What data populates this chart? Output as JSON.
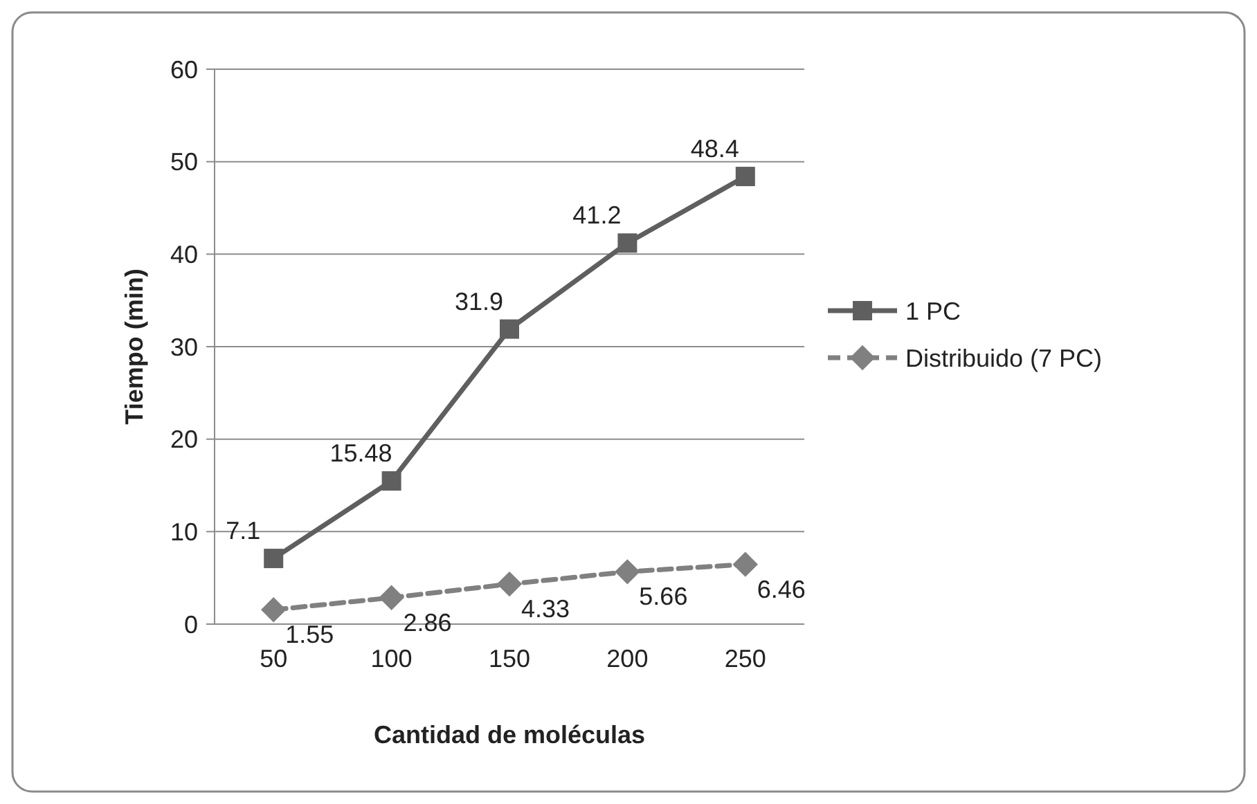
{
  "chart_data": {
    "type": "line",
    "xlabel": "Cantidad de moléculas",
    "ylabel": "Tiempo (min)",
    "categories": [
      "50",
      "100",
      "150",
      "200",
      "250"
    ],
    "series": [
      {
        "name": "1 PC",
        "color": "#5f5f5f",
        "values": [
          7.1,
          15.48,
          31.9,
          41.2,
          48.4
        ],
        "marker": "square",
        "line_style": "solid"
      },
      {
        "name": "Distribuido (7 PC)",
        "color": "#808080",
        "values": [
          1.55,
          2.86,
          4.33,
          5.66,
          6.46
        ],
        "marker": "diamond",
        "line_style": "dashed"
      }
    ],
    "ylim": [
      0,
      60
    ],
    "yticks": [
      0,
      10,
      20,
      30,
      40,
      50,
      60
    ],
    "grid": "y",
    "legend": "right",
    "data_labels": true
  }
}
